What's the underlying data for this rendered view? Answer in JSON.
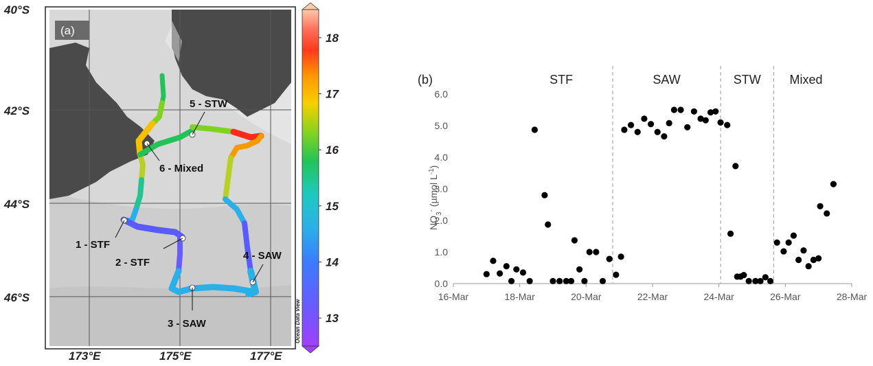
{
  "panel_a": {
    "label": "(a)",
    "lat_labels": [
      "40°S",
      "42°S",
      "44°S",
      "46°S"
    ],
    "lon_labels": [
      "173°E",
      "175°E",
      "177°E"
    ],
    "colorbar": {
      "ticks": [
        "18",
        "17",
        "16",
        "15",
        "14",
        "13"
      ],
      "range": [
        12.5,
        18.5
      ],
      "credit": "Ocean Data View"
    },
    "stations": [
      {
        "label": "1 - STF"
      },
      {
        "label": "2 - STF"
      },
      {
        "label": "3 - SAW"
      },
      {
        "label": "4 - SAW"
      },
      {
        "label": "5 - STW"
      },
      {
        "label": "6 - Mixed"
      }
    ],
    "colors": {
      "ocean": "#dcdcdc",
      "land": "#4a4a4a",
      "station": "#ffffff"
    }
  },
  "panel_b": {
    "label": "(b)",
    "y_label_main": "NO",
    "y_label_sub": "3",
    "y_label_sup": "-",
    "y_label_rest": " (µmol L",
    "y_label_sup2": "-1",
    "y_label_end": ")",
    "regions": [
      "STF",
      "SAW",
      "STW",
      "Mixed"
    ]
  },
  "chart_data": [
    {
      "type": "scatter",
      "title": "",
      "xlabel": "",
      "ylabel": "NO3- (µmol L-1)",
      "x_ticks": [
        "16-Mar",
        "18-Mar",
        "20-Mar",
        "22-Mar",
        "24-Mar",
        "26-Mar",
        "28-Mar"
      ],
      "y_ticks": [
        "0.0",
        "1.0",
        "2.0",
        "3.0",
        "4.0",
        "5.0",
        "6.0"
      ],
      "ylim": [
        0,
        6
      ],
      "xlim_days": [
        16,
        28
      ],
      "grid": false,
      "color": "#000000",
      "region_boundaries_days": [
        20.8,
        24.05,
        25.65
      ],
      "points_day_value": [
        [
          17.0,
          0.3
        ],
        [
          17.2,
          0.72
        ],
        [
          17.4,
          0.32
        ],
        [
          17.6,
          0.55
        ],
        [
          17.75,
          0.08
        ],
        [
          17.9,
          0.45
        ],
        [
          18.1,
          0.35
        ],
        [
          18.3,
          0.08
        ],
        [
          18.45,
          4.87
        ],
        [
          18.75,
          2.8
        ],
        [
          18.85,
          1.87
        ],
        [
          19.0,
          0.08
        ],
        [
          19.2,
          0.08
        ],
        [
          19.4,
          0.08
        ],
        [
          19.55,
          0.08
        ],
        [
          19.65,
          1.37
        ],
        [
          19.8,
          0.45
        ],
        [
          19.95,
          0.08
        ],
        [
          20.1,
          1.0
        ],
        [
          20.3,
          1.0
        ],
        [
          20.5,
          0.08
        ],
        [
          20.7,
          0.78
        ],
        [
          20.9,
          0.28
        ],
        [
          21.05,
          0.85
        ],
        [
          21.15,
          4.87
        ],
        [
          21.35,
          5.02
        ],
        [
          21.55,
          4.8
        ],
        [
          21.75,
          5.22
        ],
        [
          21.95,
          5.05
        ],
        [
          22.15,
          4.8
        ],
        [
          22.35,
          4.66
        ],
        [
          22.5,
          5.08
        ],
        [
          22.65,
          5.5
        ],
        [
          22.85,
          5.5
        ],
        [
          23.05,
          4.95
        ],
        [
          23.25,
          5.45
        ],
        [
          23.45,
          5.22
        ],
        [
          23.6,
          5.17
        ],
        [
          23.75,
          5.42
        ],
        [
          23.9,
          5.45
        ],
        [
          24.05,
          5.1
        ],
        [
          24.25,
          5.02
        ],
        [
          24.35,
          1.58
        ],
        [
          24.5,
          3.72
        ],
        [
          24.55,
          0.22
        ],
        [
          24.65,
          0.22
        ],
        [
          24.75,
          0.27
        ],
        [
          24.9,
          0.08
        ],
        [
          25.1,
          0.08
        ],
        [
          25.25,
          0.08
        ],
        [
          25.4,
          0.2
        ],
        [
          25.55,
          0.08
        ],
        [
          25.75,
          1.3
        ],
        [
          25.95,
          1.02
        ],
        [
          26.1,
          1.3
        ],
        [
          26.25,
          1.52
        ],
        [
          26.4,
          0.75
        ],
        [
          26.55,
          1.05
        ],
        [
          26.7,
          0.55
        ],
        [
          26.85,
          0.75
        ],
        [
          27.0,
          0.8
        ],
        [
          27.05,
          2.45
        ],
        [
          27.25,
          2.22
        ],
        [
          27.45,
          3.15
        ]
      ]
    }
  ]
}
